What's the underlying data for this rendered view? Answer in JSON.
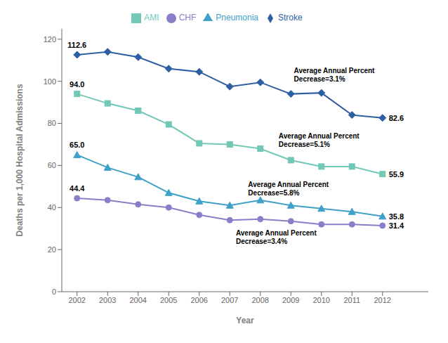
{
  "chart_data": {
    "type": "line",
    "x": [
      2002,
      2003,
      2004,
      2005,
      2006,
      2007,
      2008,
      2009,
      2010,
      2011,
      2012
    ],
    "xlim": [
      2001.5,
      2013.5
    ],
    "xticks": [
      2002,
      2003,
      2004,
      2005,
      2006,
      2007,
      2008,
      2009,
      2010,
      2011,
      2012
    ],
    "ylim": [
      0,
      125
    ],
    "yticks": [
      0,
      20,
      40,
      60,
      80,
      100,
      120
    ],
    "xlabel": "Year",
    "ylabel": "Deaths per 1,000 Hospital Admissions",
    "grid": false,
    "legend": "top",
    "series": [
      {
        "name": "Stroke",
        "color": "#2E5FA3",
        "marker": "diamond",
        "values": [
          112.6,
          114.0,
          111.5,
          106.0,
          104.5,
          97.5,
          99.5,
          94.0,
          94.5,
          84.0,
          82.6
        ],
        "value_labels": [
          "112.6",
          null,
          null,
          null,
          null,
          null,
          null,
          null,
          null,
          null,
          "82.6"
        ]
      },
      {
        "name": "AMI",
        "color": "#72C7B6",
        "marker": "square",
        "values": [
          94.0,
          89.5,
          86.0,
          79.5,
          70.5,
          70.0,
          68.0,
          62.5,
          59.5,
          59.5,
          55.9
        ],
        "value_labels": [
          "94.0",
          null,
          null,
          null,
          null,
          null,
          null,
          null,
          null,
          null,
          "55.9"
        ]
      },
      {
        "name": "Pneumonia",
        "color": "#3FA0C8",
        "marker": "triangle",
        "values": [
          65.0,
          59.0,
          54.5,
          47.0,
          43.0,
          41.0,
          43.5,
          41.0,
          39.5,
          38.0,
          35.8
        ],
        "value_labels": [
          "65.0",
          null,
          null,
          null,
          null,
          null,
          null,
          null,
          null,
          null,
          "35.8"
        ]
      },
      {
        "name": "CHF",
        "color": "#8B7EC8",
        "marker": "circle",
        "values": [
          44.4,
          43.5,
          41.5,
          40.0,
          36.5,
          34.0,
          34.5,
          33.5,
          32.0,
          32.0,
          31.4
        ],
        "value_labels": [
          "44.4",
          null,
          null,
          null,
          null,
          null,
          null,
          null,
          null,
          null,
          "31.4"
        ]
      }
    ],
    "annotations": [
      {
        "text": "Average Annual Percent\nDecrease=3.1%",
        "x": 2009.1,
        "y": 103
      },
      {
        "text": "Average Annual Percent\nDecrease=5.1%",
        "x": 2008.6,
        "y": 72
      },
      {
        "text": "Average Annual Percent\nDecrease=5.8%",
        "x": 2007.6,
        "y": 49
      },
      {
        "text": "Average Annual Percent\nDecrease=3.4%",
        "x": 2007.2,
        "y": 26
      }
    ]
  }
}
